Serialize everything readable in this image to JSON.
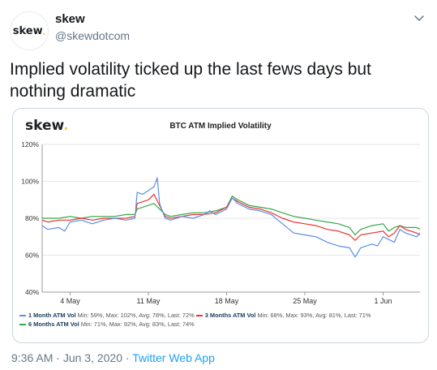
{
  "user": {
    "avatar_text": "skew",
    "avatar_dot": ".",
    "name": "skew",
    "handle": "@skewdotcom"
  },
  "tweet": {
    "text": "Implied volatility ticked up the last fews days but\nnothing dramatic",
    "time": "9:36 AM",
    "separator1": " · ",
    "date": "Jun 3, 2020",
    "separator2": " · ",
    "app": "Twitter Web App"
  },
  "card": {
    "logo_text": "skew",
    "logo_dot": "."
  },
  "chart_data": {
    "type": "line",
    "title": "BTC ATM Implied Volatility",
    "y_ticks": [
      "120%",
      "100%",
      "80%",
      "60%",
      "40%"
    ],
    "ylim": [
      40,
      120
    ],
    "x_ticks": [
      "4 May",
      "11 May",
      "18 May",
      "25 May",
      "1 Jun"
    ],
    "x_tick_days": [
      4,
      11,
      18,
      25,
      32
    ],
    "xlim": [
      1.5,
      35.3
    ],
    "grid": true,
    "legend_position": "bottom",
    "series": [
      {
        "name": "1 Month ATM Vol",
        "stats": "Min: 59%, Max: 102%, Avg: 78%, Last: 72%",
        "color": "#5b8fe8",
        "points": [
          [
            1.5,
            76
          ],
          [
            2,
            74
          ],
          [
            3,
            75
          ],
          [
            3.5,
            73
          ],
          [
            4,
            78
          ],
          [
            5,
            79
          ],
          [
            6,
            77
          ],
          [
            7,
            79
          ],
          [
            8,
            80
          ],
          [
            9,
            79
          ],
          [
            9.8,
            80
          ],
          [
            10,
            94
          ],
          [
            10.5,
            93
          ],
          [
            11,
            95
          ],
          [
            11.5,
            97
          ],
          [
            11.8,
            102
          ],
          [
            12,
            88
          ],
          [
            12.5,
            80
          ],
          [
            13,
            79
          ],
          [
            14,
            81
          ],
          [
            15,
            80
          ],
          [
            16,
            82
          ],
          [
            16.5,
            84
          ],
          [
            17,
            82
          ],
          [
            18,
            85
          ],
          [
            18.5,
            91
          ],
          [
            19,
            88
          ],
          [
            20,
            85
          ],
          [
            21,
            84
          ],
          [
            22,
            82
          ],
          [
            23,
            77
          ],
          [
            24,
            72
          ],
          [
            25,
            71
          ],
          [
            26,
            70
          ],
          [
            27,
            67
          ],
          [
            28,
            65
          ],
          [
            29,
            64
          ],
          [
            29.5,
            59
          ],
          [
            30,
            64
          ],
          [
            31,
            66
          ],
          [
            31.5,
            65
          ],
          [
            32,
            70
          ],
          [
            33,
            67
          ],
          [
            33.5,
            74
          ],
          [
            34,
            72
          ],
          [
            35,
            70
          ],
          [
            35.3,
            72
          ]
        ]
      },
      {
        "name": "3 Months ATM Vol",
        "stats": "Min: 68%, Max: 93%, Avg: 81%, Last: 71%",
        "color": "#e8352f",
        "points": [
          [
            1.5,
            79
          ],
          [
            2,
            78
          ],
          [
            3,
            79
          ],
          [
            4,
            79
          ],
          [
            5,
            80
          ],
          [
            6,
            79
          ],
          [
            7,
            80
          ],
          [
            8,
            80
          ],
          [
            9,
            80
          ],
          [
            9.8,
            81
          ],
          [
            10,
            88
          ],
          [
            11,
            90
          ],
          [
            11.5,
            93
          ],
          [
            12,
            87
          ],
          [
            12.5,
            81
          ],
          [
            13,
            80
          ],
          [
            14,
            81
          ],
          [
            15,
            82
          ],
          [
            16,
            82
          ],
          [
            17,
            83
          ],
          [
            18,
            86
          ],
          [
            18.5,
            91
          ],
          [
            19,
            89
          ],
          [
            20,
            86
          ],
          [
            21,
            85
          ],
          [
            22,
            83
          ],
          [
            23,
            80
          ],
          [
            24,
            78
          ],
          [
            25,
            77
          ],
          [
            26,
            76
          ],
          [
            27,
            74
          ],
          [
            28,
            73
          ],
          [
            29,
            71
          ],
          [
            29.5,
            68
          ],
          [
            30,
            71
          ],
          [
            31,
            72
          ],
          [
            32,
            73
          ],
          [
            32.5,
            70
          ],
          [
            33,
            72
          ],
          [
            33.5,
            76
          ],
          [
            34,
            74
          ],
          [
            35,
            72
          ],
          [
            35.3,
            71
          ]
        ]
      },
      {
        "name": "6 Months ATM Vol",
        "stats": "Min: 71%, Max: 92%, Avg: 83%, Last: 74%",
        "color": "#35a84a",
        "points": [
          [
            1.5,
            80
          ],
          [
            2,
            80
          ],
          [
            3,
            80
          ],
          [
            4,
            81
          ],
          [
            5,
            80
          ],
          [
            6,
            81
          ],
          [
            7,
            81
          ],
          [
            8,
            81
          ],
          [
            9,
            82
          ],
          [
            9.8,
            82
          ],
          [
            10,
            85
          ],
          [
            11,
            87
          ],
          [
            11.5,
            88
          ],
          [
            12,
            85
          ],
          [
            12.5,
            82
          ],
          [
            13,
            81
          ],
          [
            14,
            82
          ],
          [
            15,
            83
          ],
          [
            16,
            83
          ],
          [
            17,
            84
          ],
          [
            18,
            86
          ],
          [
            18.5,
            92
          ],
          [
            19,
            90
          ],
          [
            20,
            87
          ],
          [
            21,
            86
          ],
          [
            22,
            85
          ],
          [
            23,
            83
          ],
          [
            24,
            81
          ],
          [
            25,
            80
          ],
          [
            26,
            79
          ],
          [
            27,
            78
          ],
          [
            28,
            77
          ],
          [
            29,
            75
          ],
          [
            29.5,
            71
          ],
          [
            30,
            74
          ],
          [
            31,
            76
          ],
          [
            32,
            77
          ],
          [
            32.5,
            73
          ],
          [
            33,
            75
          ],
          [
            33.5,
            76
          ],
          [
            34,
            75
          ],
          [
            35,
            75
          ],
          [
            35.3,
            74
          ]
        ]
      }
    ]
  }
}
